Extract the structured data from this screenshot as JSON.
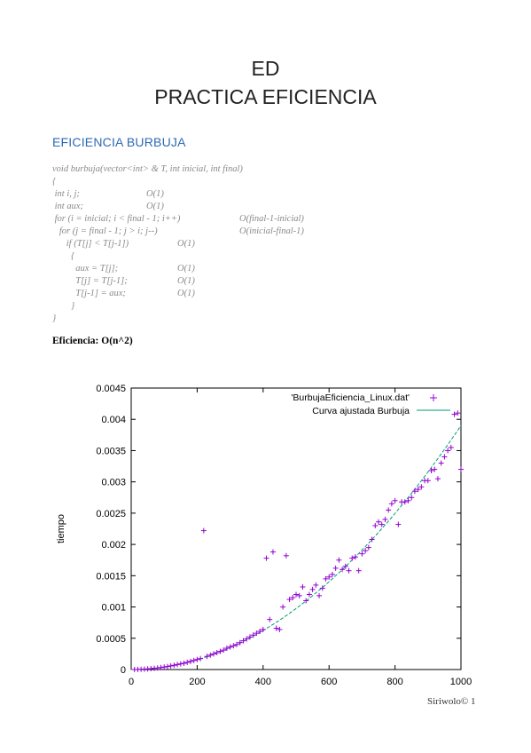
{
  "doc": {
    "title_line1": "ED",
    "title_line2": "PRACTICA EFICIENCIA",
    "section_heading": "EFICIENCIA BURBUJA",
    "efficiency_label": "Eficiencia: O(n^2)",
    "footer": "Siriwolo© 1"
  },
  "code_lines": [
    {
      "code": "void burbuja(vector<int> & T, int inicial, int final)",
      "cost1": "",
      "cost2": ""
    },
    {
      "code": "{",
      "cost1": "",
      "cost2": ""
    },
    {
      "code": " int i, j;",
      "cost1": "O(1)",
      "cost2": ""
    },
    {
      "code": " int aux;",
      "cost1": "O(1)",
      "cost2": ""
    },
    {
      "code": " for (i = inicial; i < final - 1; i++)",
      "cost1": "",
      "cost2": "O(final-1-inicial)"
    },
    {
      "code": "   for (j = final - 1; j > i; j--)",
      "cost1": "",
      "cost2": "O(inicial-final-1)"
    },
    {
      "code": "      if (T[j] < T[j-1])",
      "cost1": "O(1)",
      "cost2": ""
    },
    {
      "code": "        {",
      "cost1": "",
      "cost2": ""
    },
    {
      "code": "          aux = T[j];",
      "cost1": "O(1)",
      "cost2": ""
    },
    {
      "code": "          T[j] = T[j-1];",
      "cost1": "O(1)",
      "cost2": ""
    },
    {
      "code": "          T[j-1] = aux;",
      "cost1": "O(1)",
      "cost2": ""
    },
    {
      "code": "        }",
      "cost1": "",
      "cost2": ""
    },
    {
      "code": "}",
      "cost1": "",
      "cost2": ""
    }
  ],
  "chart_data": {
    "type": "scatter",
    "xlabel": "",
    "ylabel": "tiempo",
    "xlim": [
      0,
      1000
    ],
    "ylim": [
      0,
      0.0045
    ],
    "x_ticks": [
      "0",
      "200",
      "400",
      "600",
      "800",
      "1000"
    ],
    "y_ticks": [
      "0",
      "0.0005",
      "0.001",
      "0.0015",
      "0.002",
      "0.0025",
      "0.003",
      "0.0035",
      "0.004",
      "0.0045"
    ],
    "grid": false,
    "legend_position": "top-right",
    "colors": {
      "data": "#9400d3",
      "fit": "#009e73"
    },
    "series": [
      {
        "name": "'BurbujaEficiencia_Linux.dat'",
        "style": "points",
        "x": [
          10,
          20,
          30,
          40,
          50,
          60,
          70,
          80,
          90,
          100,
          110,
          120,
          130,
          140,
          150,
          160,
          170,
          180,
          190,
          200,
          210,
          220,
          230,
          240,
          250,
          260,
          270,
          280,
          290,
          300,
          310,
          320,
          330,
          340,
          350,
          360,
          370,
          380,
          390,
          400,
          410,
          420,
          430,
          440,
          450,
          460,
          470,
          480,
          490,
          500,
          510,
          520,
          530,
          540,
          550,
          560,
          570,
          580,
          590,
          600,
          610,
          620,
          630,
          640,
          650,
          660,
          670,
          680,
          690,
          700,
          710,
          720,
          730,
          740,
          750,
          760,
          770,
          780,
          790,
          800,
          810,
          820,
          830,
          840,
          850,
          860,
          870,
          880,
          890,
          900,
          910,
          920,
          930,
          940,
          950,
          960,
          970,
          980,
          990,
          1000
        ],
        "y": [
          4e-07,
          2e-06,
          4e-06,
          7e-06,
          1e-05,
          1.4e-05,
          2e-05,
          2.5e-05,
          3.2e-05,
          4e-05,
          4.8e-05,
          5.8e-05,
          6.8e-05,
          8e-05,
          9e-05,
          0.0001,
          0.000115,
          0.00013,
          0.000145,
          0.00016,
          0.000175,
          0.00222,
          0.00021,
          0.00023,
          0.00025,
          0.00027,
          0.00029,
          0.00031,
          0.00034,
          0.00036,
          0.00038,
          0.0004,
          0.00043,
          0.00046,
          0.00049,
          0.00052,
          0.00055,
          0.00058,
          0.00061,
          0.00064,
          0.00178,
          0.0008,
          0.00188,
          0.00066,
          0.00064,
          0.001,
          0.00182,
          0.00112,
          0.00115,
          0.0012,
          0.00118,
          0.00132,
          0.0011,
          0.0012,
          0.00128,
          0.00135,
          0.00118,
          0.0013,
          0.00145,
          0.00148,
          0.00152,
          0.00162,
          0.00175,
          0.0016,
          0.00165,
          0.00158,
          0.00178,
          0.0018,
          0.00158,
          0.00185,
          0.0019,
          0.00195,
          0.00208,
          0.0023,
          0.00236,
          0.00232,
          0.0024,
          0.00255,
          0.00265,
          0.0027,
          0.00232,
          0.00268,
          0.00268,
          0.0027,
          0.00275,
          0.00285,
          0.00288,
          0.00292,
          0.00302,
          0.00302,
          0.00318,
          0.0032,
          0.00305,
          0.0033,
          0.0034,
          0.0035,
          0.00355,
          0.00408,
          0.0041,
          0.0032
        ]
      },
      {
        "name": "Curva ajustada Burbuja",
        "style": "line",
        "fit": "y = 3.9e-9 * x^2",
        "x": [
          0,
          50,
          100,
          150,
          200,
          250,
          300,
          350,
          400,
          450,
          500,
          550,
          600,
          650,
          700,
          750,
          800,
          850,
          900,
          950,
          1000
        ],
        "y": [
          0,
          1e-05,
          3.9e-05,
          8.78e-05,
          0.000156,
          0.000244,
          0.000351,
          0.000478,
          0.000624,
          0.00079,
          0.000975,
          0.00118,
          0.0014,
          0.00165,
          0.00191,
          0.00219,
          0.0025,
          0.00282,
          0.00316,
          0.00352,
          0.0039
        ]
      }
    ]
  }
}
